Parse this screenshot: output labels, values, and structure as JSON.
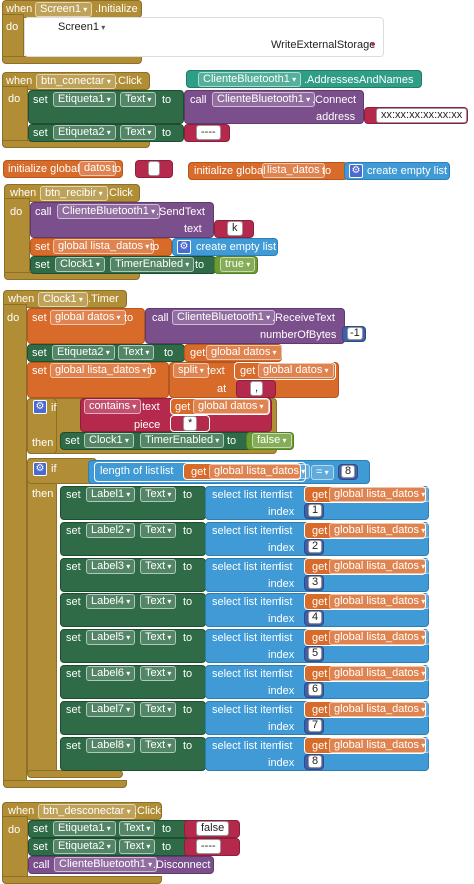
{
  "kw": {
    "when": "when",
    "do": "do",
    "set": "set",
    "call": "call",
    "to": "to",
    "if": "if",
    "then": "then",
    "text": "text",
    "at": "at",
    "piece": "piece",
    "index": "index",
    "address": "address",
    "numberOfBytes": "numberOfBytes",
    "get": "get",
    "contains": "contains",
    "length_of_list": "length of list",
    "list": "list",
    "select_list_item": "select list item",
    "create_empty_list": "create empty list",
    "initialize_global": "initialize global"
  },
  "b1": {
    "component": "Screen1",
    "event": ".Initialize",
    "sub_component": "Screen1",
    "permission": "WriteExternalStorage"
  },
  "b2": {
    "component": "btn_conectar",
    "event": ".Click",
    "lbl1": "Etiqueta1",
    "prop1": "Text",
    "bt": "ClienteBluetooth1",
    "method": ".Connect",
    "address_value": "xx:xx:xx:xx:xx:xx",
    "lbl2": "Etiqueta2",
    "prop2": "Text",
    "dashes": "----"
  },
  "floating": {
    "bt": "ClienteBluetooth1",
    "prop": ".AddressesAndNames"
  },
  "globals": {
    "datos_name": "datos",
    "datos_value": "",
    "lista_name": "lista_datos"
  },
  "b3": {
    "component": "btn_recibir",
    "event": ".Click",
    "bt": "ClienteBluetooth1",
    "method": ".SendText",
    "send_value": "k",
    "var": "global lista_datos",
    "clock": "Clock1",
    "clock_prop": "TimerEnabled",
    "bool": "true"
  },
  "b4": {
    "component": "Clock1",
    "event": ".Timer",
    "var_datos": "global datos",
    "bt": "ClienteBluetooth1",
    "receive": ".ReceiveText",
    "bytes": "-1",
    "lbl2": "Etiqueta2",
    "prop": "Text",
    "var_lista": "global lista_datos",
    "split": "split",
    "split_at": ",",
    "contains_piece": "*",
    "clock": "Clock1",
    "clock_prop": "TimerEnabled",
    "bool_false": "false",
    "cmp": "=",
    "len_value": "8",
    "labels": [
      {
        "name": "Label1",
        "idx": "1"
      },
      {
        "name": "Label2",
        "idx": "2"
      },
      {
        "name": "Label3",
        "idx": "3"
      },
      {
        "name": "Label4",
        "idx": "4"
      },
      {
        "name": "Label5",
        "idx": "5"
      },
      {
        "name": "Label6",
        "idx": "6"
      },
      {
        "name": "Label7",
        "idx": "7"
      },
      {
        "name": "Label8",
        "idx": "8"
      }
    ]
  },
  "b5": {
    "component": "btn_desconectar",
    "event": ".Click",
    "lbl1": "Etiqueta1",
    "prop": "Text",
    "bool": "false",
    "lbl2": "Etiqueta2",
    "dashes": "----",
    "bt": "ClienteBluetooth1",
    "method": ".Disconnect"
  },
  "colors": {
    "event": "#b18e35",
    "set": "#2e6b46",
    "call": "#7b4f8c",
    "list": "#3f9ad6",
    "global_var": "#d86a2a",
    "text": "#b5294d",
    "number": "#3f5fa8",
    "logic": "#6b9b33"
  }
}
